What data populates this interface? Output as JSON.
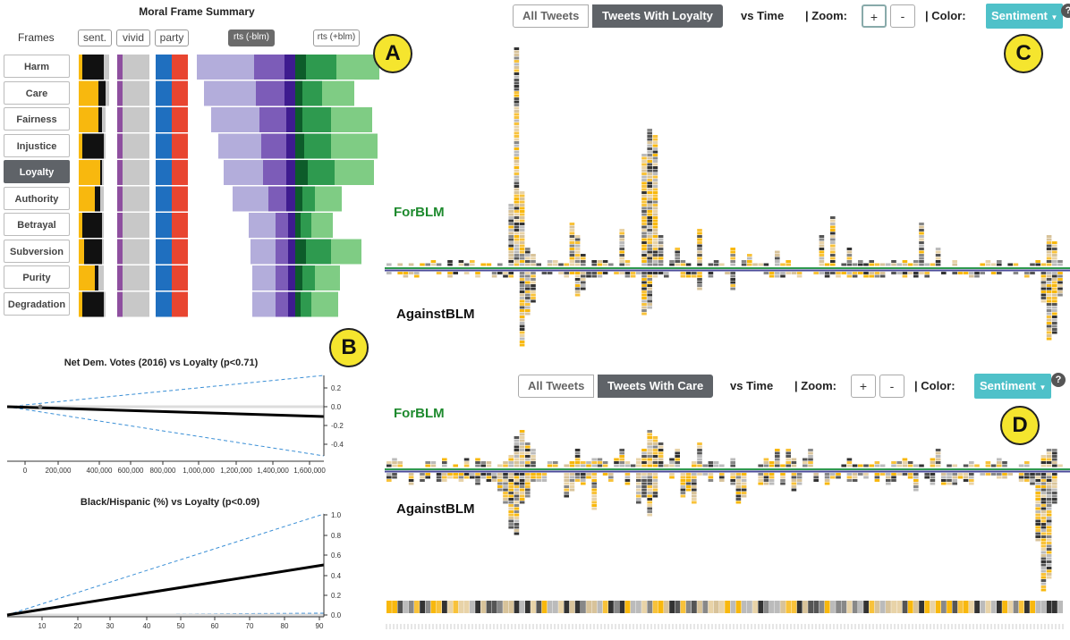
{
  "summary": {
    "title": "Moral Frame Summary",
    "frames_header": "Frames",
    "col_sent": "sent.",
    "col_vivid": "vivid",
    "col_party": "party",
    "col_rts_neg": "rts (-blm)",
    "col_rts_pos": "rts (+blm)",
    "frames": [
      "Harm",
      "Care",
      "Fairness",
      "Injustice",
      "Loyalty",
      "Authority",
      "Betrayal",
      "Subversion",
      "Purity",
      "Degradation"
    ],
    "active_frame": "Loyalty",
    "sent_widths": [
      [
        0,
        4,
        24,
        6
      ],
      [
        0,
        22,
        8,
        4
      ],
      [
        0,
        22,
        4,
        4
      ],
      [
        0,
        4,
        24,
        2
      ],
      [
        0,
        24,
        2,
        2
      ],
      [
        0,
        18,
        6,
        4
      ],
      [
        0,
        4,
        22,
        2
      ],
      [
        0,
        6,
        20,
        2
      ],
      [
        0,
        18,
        4,
        6
      ],
      [
        0,
        4,
        24,
        2
      ]
    ],
    "rts_neg": [
      [
        64,
        34,
        12
      ],
      [
        58,
        32,
        12
      ],
      [
        54,
        30,
        10
      ],
      [
        48,
        28,
        10
      ],
      [
        44,
        26,
        10
      ],
      [
        40,
        20,
        10
      ],
      [
        30,
        14,
        8
      ],
      [
        28,
        14,
        8
      ],
      [
        26,
        14,
        8
      ],
      [
        26,
        14,
        8
      ]
    ],
    "rts_pos": [
      [
        12,
        34,
        48
      ],
      [
        8,
        22,
        36
      ],
      [
        8,
        32,
        46
      ],
      [
        10,
        30,
        52
      ],
      [
        14,
        30,
        44
      ],
      [
        8,
        14,
        30
      ],
      [
        6,
        12,
        24
      ],
      [
        12,
        28,
        34
      ],
      [
        8,
        14,
        28
      ],
      [
        6,
        12,
        30
      ]
    ]
  },
  "badges": {
    "a": "A",
    "b": "B",
    "c": "C",
    "d": "D"
  },
  "regression": {
    "chart1_title": "Net Dem. Votes (2016) vs Loyalty (p<0.71)",
    "chart1_x_ticks": [
      "0",
      "200,000",
      "400,000",
      "600,000",
      "800,000",
      "1,000,000",
      "1,200,000",
      "1,400,000",
      "1,600,000"
    ],
    "chart1_y_ticks": [
      "0.2",
      "0.0",
      "-0.2",
      "-0.4"
    ],
    "chart2_title": "Black/Hispanic (%) vs Loyalty (p<0.09)",
    "chart2_x_ticks": [
      "10",
      "20",
      "30",
      "40",
      "50",
      "60",
      "70",
      "80",
      "90"
    ],
    "chart2_y_ticks": [
      "1.0",
      "0.8",
      "0.6",
      "0.4",
      "0.2",
      "0.0"
    ]
  },
  "panel_c": {
    "all_tweets": "All Tweets",
    "with_frame": "Tweets With Loyalty",
    "vs_time": "vs Time",
    "zoom_label": "| Zoom:",
    "zoom_in": "+",
    "zoom_out": "-",
    "color_label": "| Color:",
    "color_value": "Sentiment",
    "for_label": "ForBLM",
    "against_label": "AgainstBLM",
    "help": "?"
  },
  "panel_d": {
    "all_tweets": "All Tweets",
    "with_frame": "Tweets With Care",
    "vs_time": "vs Time",
    "zoom_label": "| Zoom:",
    "zoom_in": "+",
    "zoom_out": "-",
    "color_label": "| Color:",
    "color_value": "Sentiment",
    "for_label": "ForBLM",
    "against_label": "AgainstBLM",
    "help": "?"
  },
  "colors": {
    "yellow": "#f8b80e",
    "black": "#111111",
    "grey": "#c8c8c8",
    "purple_bar": "#8e4f9f",
    "dem_blue": "#1f6fbf",
    "rep_red": "#e84530",
    "purple_light": "#b3addb",
    "purple_mid": "#7c5cb8",
    "purple_dark": "#3e1b8f",
    "green_dark": "#0d5c2a",
    "green_mid": "#2e9a4f",
    "green_light": "#7fcc84",
    "teal": "#4fc1c9"
  }
}
